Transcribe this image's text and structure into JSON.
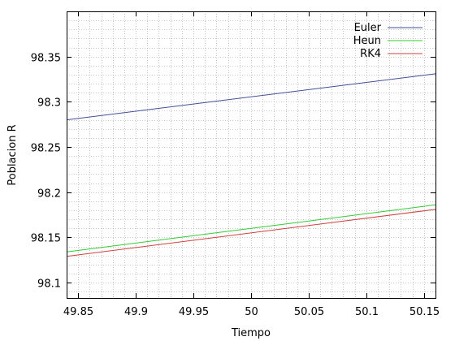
{
  "chart_data": {
    "type": "line",
    "title": "",
    "xlabel": "Tiempo",
    "ylabel": "Poblacion R",
    "xlim": [
      49.84,
      50.16
    ],
    "ylim": [
      98.083,
      98.4
    ],
    "x_ticks": [
      49.85,
      49.9,
      49.95,
      50,
      50.05,
      50.1,
      50.15
    ],
    "x_tick_labels": [
      "49.85",
      "49.9",
      "49.95",
      "50",
      "50.05",
      "50.1",
      "50.15"
    ],
    "y_ticks": [
      98.1,
      98.15,
      98.2,
      98.25,
      98.3,
      98.35
    ],
    "y_tick_labels": [
      "98.1",
      "98.15",
      "98.2",
      "98.25",
      "98.3",
      "98.35"
    ],
    "grid": true,
    "legend_position": "top-right",
    "series": [
      {
        "name": "Euler",
        "color": "#3f4f9a",
        "x": [
          49.84,
          50.16
        ],
        "y": [
          98.28,
          98.331
        ]
      },
      {
        "name": "Heun",
        "color": "#33cc33",
        "x": [
          49.84,
          50.16
        ],
        "y": [
          98.134,
          98.186
        ]
      },
      {
        "name": "RK4",
        "color": "#d04040",
        "x": [
          49.84,
          50.16
        ],
        "y": [
          98.129,
          98.181
        ]
      }
    ]
  }
}
